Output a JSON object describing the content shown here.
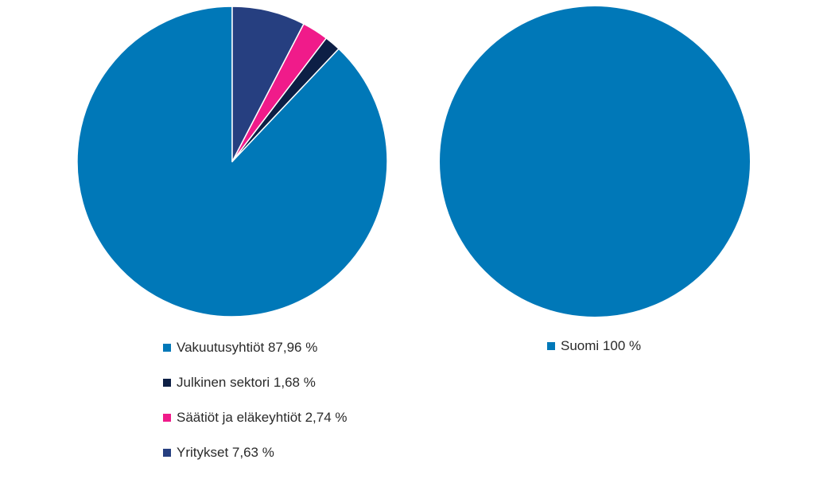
{
  "chart_data": [
    {
      "type": "pie",
      "slices": [
        {
          "label": "Vakuutusyhtiöt",
          "value": 87.96,
          "legend_text": "Vakuutusyhtiöt 87,96 %",
          "color": "#0078b8"
        },
        {
          "label": "Julkinen sektori",
          "value": 1.68,
          "legend_text": "Julkinen sektori 1,68 %",
          "color": "#0d1f45"
        },
        {
          "label": "Säätiöt ja eläkeyhtiöt",
          "value": 2.74,
          "legend_text": "Säätiöt ja eläkeyhtiöt 2,74 %",
          "color": "#f01b8a"
        },
        {
          "label": "Yritykset",
          "value": 7.63,
          "legend_text": "Yritykset 7,63 %",
          "color": "#263f80"
        }
      ],
      "start_angle_deg": 0,
      "direction": "counterclockwise",
      "legend_position": "bottom"
    },
    {
      "type": "pie",
      "slices": [
        {
          "label": "Suomi",
          "value": 100,
          "legend_text": "Suomi 100 %",
          "color": "#0078b8"
        }
      ],
      "start_angle_deg": 0,
      "direction": "counterclockwise",
      "legend_position": "bottom"
    }
  ]
}
